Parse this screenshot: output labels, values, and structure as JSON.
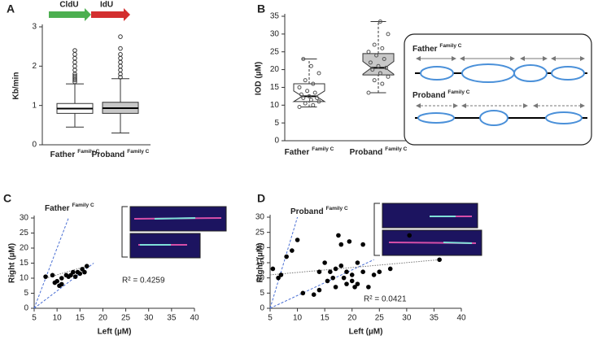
{
  "chart_data": [
    {
      "type": "boxplot",
      "panel": "A",
      "annotations": [
        "CldU",
        "IdU"
      ],
      "ylabel": "Kb/min",
      "categories": [
        "Father",
        "Proband"
      ],
      "category_superscripts": [
        "Family C",
        "Family C"
      ],
      "colors": [
        "#ffffff",
        "#c8c8c8"
      ],
      "notched": false,
      "boxes": [
        {
          "min": 0.45,
          "q1": 0.8,
          "median": 0.92,
          "q3": 1.05,
          "max": 1.55,
          "outliers": [
            1.6,
            1.65,
            1.7,
            1.75,
            1.8,
            1.9,
            2.0,
            2.1,
            2.2,
            2.3,
            2.4
          ]
        },
        {
          "min": 0.3,
          "q1": 0.8,
          "median": 0.93,
          "q3": 1.08,
          "max": 1.68,
          "outliers": [
            1.72,
            1.8,
            1.9,
            2.0,
            2.1,
            2.2,
            2.3,
            2.45,
            2.75
          ]
        }
      ],
      "ylim": [
        0,
        3
      ],
      "yticks": [
        0,
        1,
        2,
        3
      ]
    },
    {
      "type": "boxplot",
      "panel": "B",
      "ylabel": "IOD (µM)",
      "categories": [
        "Father",
        "Proband"
      ],
      "category_superscripts": [
        "Family C",
        "Family C"
      ],
      "colors": [
        "#ffffff",
        "#c8c8c8"
      ],
      "notched": true,
      "boxes": [
        {
          "min": 9.5,
          "q1": 11,
          "median": 12.5,
          "q3": 16,
          "max": 23,
          "points": [
            9.5,
            10,
            10.5,
            11,
            11.5,
            12,
            12,
            12.5,
            13,
            13.5,
            14,
            15,
            16,
            17,
            19,
            21,
            23
          ]
        },
        {
          "min": 13.5,
          "q1": 18.5,
          "median": 20.5,
          "q3": 24.5,
          "max": 33.5,
          "points": [
            13.5,
            16,
            17,
            18,
            19,
            20,
            20.5,
            21,
            22,
            23,
            24,
            25,
            26,
            27,
            30,
            33.5
          ]
        }
      ],
      "ylim": [
        0,
        35
      ],
      "yticks": [
        0,
        5,
        10,
        15,
        20,
        25,
        30,
        35
      ]
    },
    {
      "type": "scatter",
      "panel": "C",
      "title": "Father",
      "title_superscript": "Family C",
      "annotation": "R² = 0.4259",
      "xlabel": "Left (µM)",
      "ylabel": "Right (µM)",
      "color": "#000000",
      "x": [
        7.5,
        9,
        10,
        10.5,
        11,
        11,
        12,
        12.5,
        13,
        14,
        14.5,
        15,
        15.5,
        16,
        16.5,
        13.5,
        9.5
      ],
      "values": [
        10.5,
        11,
        9,
        7.5,
        8,
        10,
        11,
        10.5,
        11,
        10.5,
        12,
        11.5,
        13,
        12,
        14,
        12,
        8.5
      ],
      "reference_lines": [
        {
          "x": [
            5,
            12.5
          ],
          "y": [
            0,
            30
          ]
        },
        {
          "x": [
            5,
            18
          ],
          "y": [
            0,
            15
          ]
        }
      ],
      "trend": {
        "x": [
          7.5,
          16.5
        ],
        "y": [
          10,
          14
        ]
      },
      "xlim": [
        5,
        40
      ],
      "xticks": [
        5,
        10,
        15,
        20,
        25,
        30,
        35,
        40
      ],
      "ylim": [
        0,
        30
      ],
      "yticks": [
        0,
        5,
        10,
        15,
        20,
        25,
        30
      ]
    },
    {
      "type": "scatter",
      "panel": "D",
      "title": "Proband",
      "title_superscript": "Family C",
      "annotation": "R² = 0.0421",
      "xlabel": "Left (µM)",
      "ylabel": "Right (µM)",
      "color": "#000000",
      "x": [
        5.5,
        6.5,
        7,
        8,
        9,
        10,
        11,
        13,
        14,
        14,
        15,
        15.5,
        16,
        16.5,
        17,
        17,
        17.5,
        18,
        18.5,
        19,
        19,
        20,
        20,
        20.5,
        21,
        21,
        22,
        22,
        23,
        24,
        25,
        27,
        30.5,
        36,
        18,
        19.5
      ],
      "values": [
        13,
        10,
        11,
        17,
        19,
        22.5,
        5,
        4.5,
        6,
        12,
        15,
        9,
        12,
        10,
        13,
        7,
        24,
        14,
        10,
        12,
        8,
        11,
        9,
        7,
        8,
        15,
        12,
        21,
        7,
        11,
        12,
        13,
        24,
        16,
        21,
        22
      ],
      "reference_lines": [
        {
          "x": [
            5,
            10
          ],
          "y": [
            0,
            30
          ]
        },
        {
          "x": [
            5,
            24
          ],
          "y": [
            0,
            16
          ]
        }
      ],
      "trend": {
        "x": [
          5,
          36
        ],
        "y": [
          11,
          16
        ]
      },
      "xlim": [
        5,
        40
      ],
      "xticks": [
        5,
        10,
        15,
        20,
        25,
        30,
        35,
        40
      ],
      "ylim": [
        0,
        30
      ],
      "yticks": [
        0,
        5,
        10,
        15,
        20,
        25,
        30
      ]
    }
  ],
  "diagram": {
    "rows": [
      {
        "label": "Father",
        "superscript": "Family C"
      },
      {
        "label": "Proband",
        "superscript": "Family C"
      }
    ]
  }
}
